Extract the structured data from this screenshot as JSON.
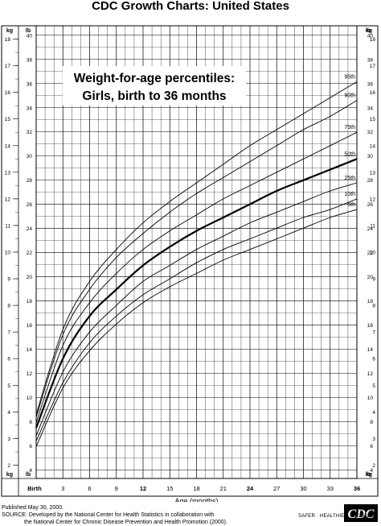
{
  "header": {
    "title": "CDC Growth Charts: United States"
  },
  "chart_data": {
    "type": "line",
    "title": "Weight-for-age percentiles:",
    "subtitle": "Girls, birth to 36 months",
    "xlabel": "Age (months)",
    "x_ticks": [
      "Birth",
      "3",
      "6",
      "9",
      "12",
      "15",
      "18",
      "21",
      "24",
      "27",
      "30",
      "33",
      "36"
    ],
    "x_ticks_bold": [
      "Birth",
      "12",
      "24",
      "36"
    ],
    "xlim": [
      0,
      36
    ],
    "ylim_kg": [
      1.5,
      18.5
    ],
    "ylim_lb": [
      4,
      40
    ],
    "kg_ticks": [
      "2",
      "3",
      "4",
      "5",
      "6",
      "7",
      "8",
      "9",
      "10",
      "11",
      "12",
      "13",
      "14",
      "15",
      "16",
      "17",
      "18"
    ],
    "lb_ticks": [
      "4",
      "6",
      "8",
      "10",
      "12",
      "14",
      "16",
      "18",
      "20",
      "22",
      "24",
      "26",
      "28",
      "30",
      "32",
      "34",
      "36",
      "38",
      "40"
    ],
    "left_unit_labels": {
      "top": "kg",
      "bottom": "kg"
    },
    "right_unit_labels": {
      "top": "lb",
      "bottom": "lb"
    },
    "grid": true,
    "series": [
      {
        "name": "95th",
        "bold": false,
        "x": [
          0,
          3,
          6,
          9,
          12,
          15,
          18,
          21,
          24,
          27,
          30,
          33,
          36
        ],
        "y": [
          3.9,
          7.1,
          8.9,
          10.1,
          11.1,
          11.9,
          12.6,
          13.3,
          14.0,
          14.6,
          15.2,
          15.8,
          16.4
        ]
      },
      {
        "name": "90th",
        "bold": false,
        "x": [
          0,
          3,
          6,
          9,
          12,
          15,
          18,
          21,
          24,
          27,
          30,
          33,
          36
        ],
        "y": [
          3.8,
          6.9,
          8.6,
          9.8,
          10.7,
          11.5,
          12.2,
          12.8,
          13.4,
          14.0,
          14.6,
          15.1,
          15.7
        ]
      },
      {
        "name": "75th",
        "bold": false,
        "x": [
          0,
          3,
          6,
          9,
          12,
          15,
          18,
          21,
          24,
          27,
          30,
          33,
          36
        ],
        "y": [
          3.6,
          6.5,
          8.1,
          9.2,
          10.1,
          10.8,
          11.4,
          12.0,
          12.5,
          13.0,
          13.5,
          14.0,
          14.5
        ]
      },
      {
        "name": "50th",
        "bold": true,
        "x": [
          0,
          3,
          6,
          9,
          12,
          15,
          18,
          21,
          24,
          27,
          30,
          33,
          36
        ],
        "y": [
          3.4,
          6.0,
          7.6,
          8.6,
          9.5,
          10.2,
          10.8,
          11.3,
          11.8,
          12.3,
          12.7,
          13.1,
          13.5
        ]
      },
      {
        "name": "25th",
        "bold": false,
        "x": [
          0,
          3,
          6,
          9,
          12,
          15,
          18,
          21,
          24,
          27,
          30,
          33,
          36
        ],
        "y": [
          3.1,
          5.5,
          7.0,
          8.0,
          8.9,
          9.5,
          10.1,
          10.6,
          11.1,
          11.5,
          11.9,
          12.3,
          12.6
        ]
      },
      {
        "name": "10th",
        "bold": false,
        "x": [
          0,
          3,
          6,
          9,
          12,
          15,
          18,
          21,
          24,
          27,
          30,
          33,
          36
        ],
        "y": [
          2.9,
          5.1,
          6.6,
          7.6,
          8.4,
          9.0,
          9.6,
          10.1,
          10.5,
          10.9,
          11.3,
          11.6,
          12.0
        ]
      },
      {
        "name": "5th",
        "bold": false,
        "x": [
          0,
          3,
          6,
          9,
          12,
          15,
          18,
          21,
          24,
          27,
          30,
          33,
          36
        ],
        "y": [
          2.7,
          4.9,
          6.3,
          7.3,
          8.1,
          8.7,
          9.2,
          9.7,
          10.1,
          10.5,
          10.9,
          11.3,
          11.6
        ]
      }
    ]
  },
  "footer": {
    "published": "Published May 30, 2000.",
    "source_line1": "SOURCE: Developed by the National Center for Health Statistics in collaboration with",
    "source_line2": "the National Center for Chronic Disease Prevention and Health Promotion (2000).",
    "logo_text": "CDC",
    "slogan": "SAFER · HEALTHIER · PEOPLE™"
  }
}
